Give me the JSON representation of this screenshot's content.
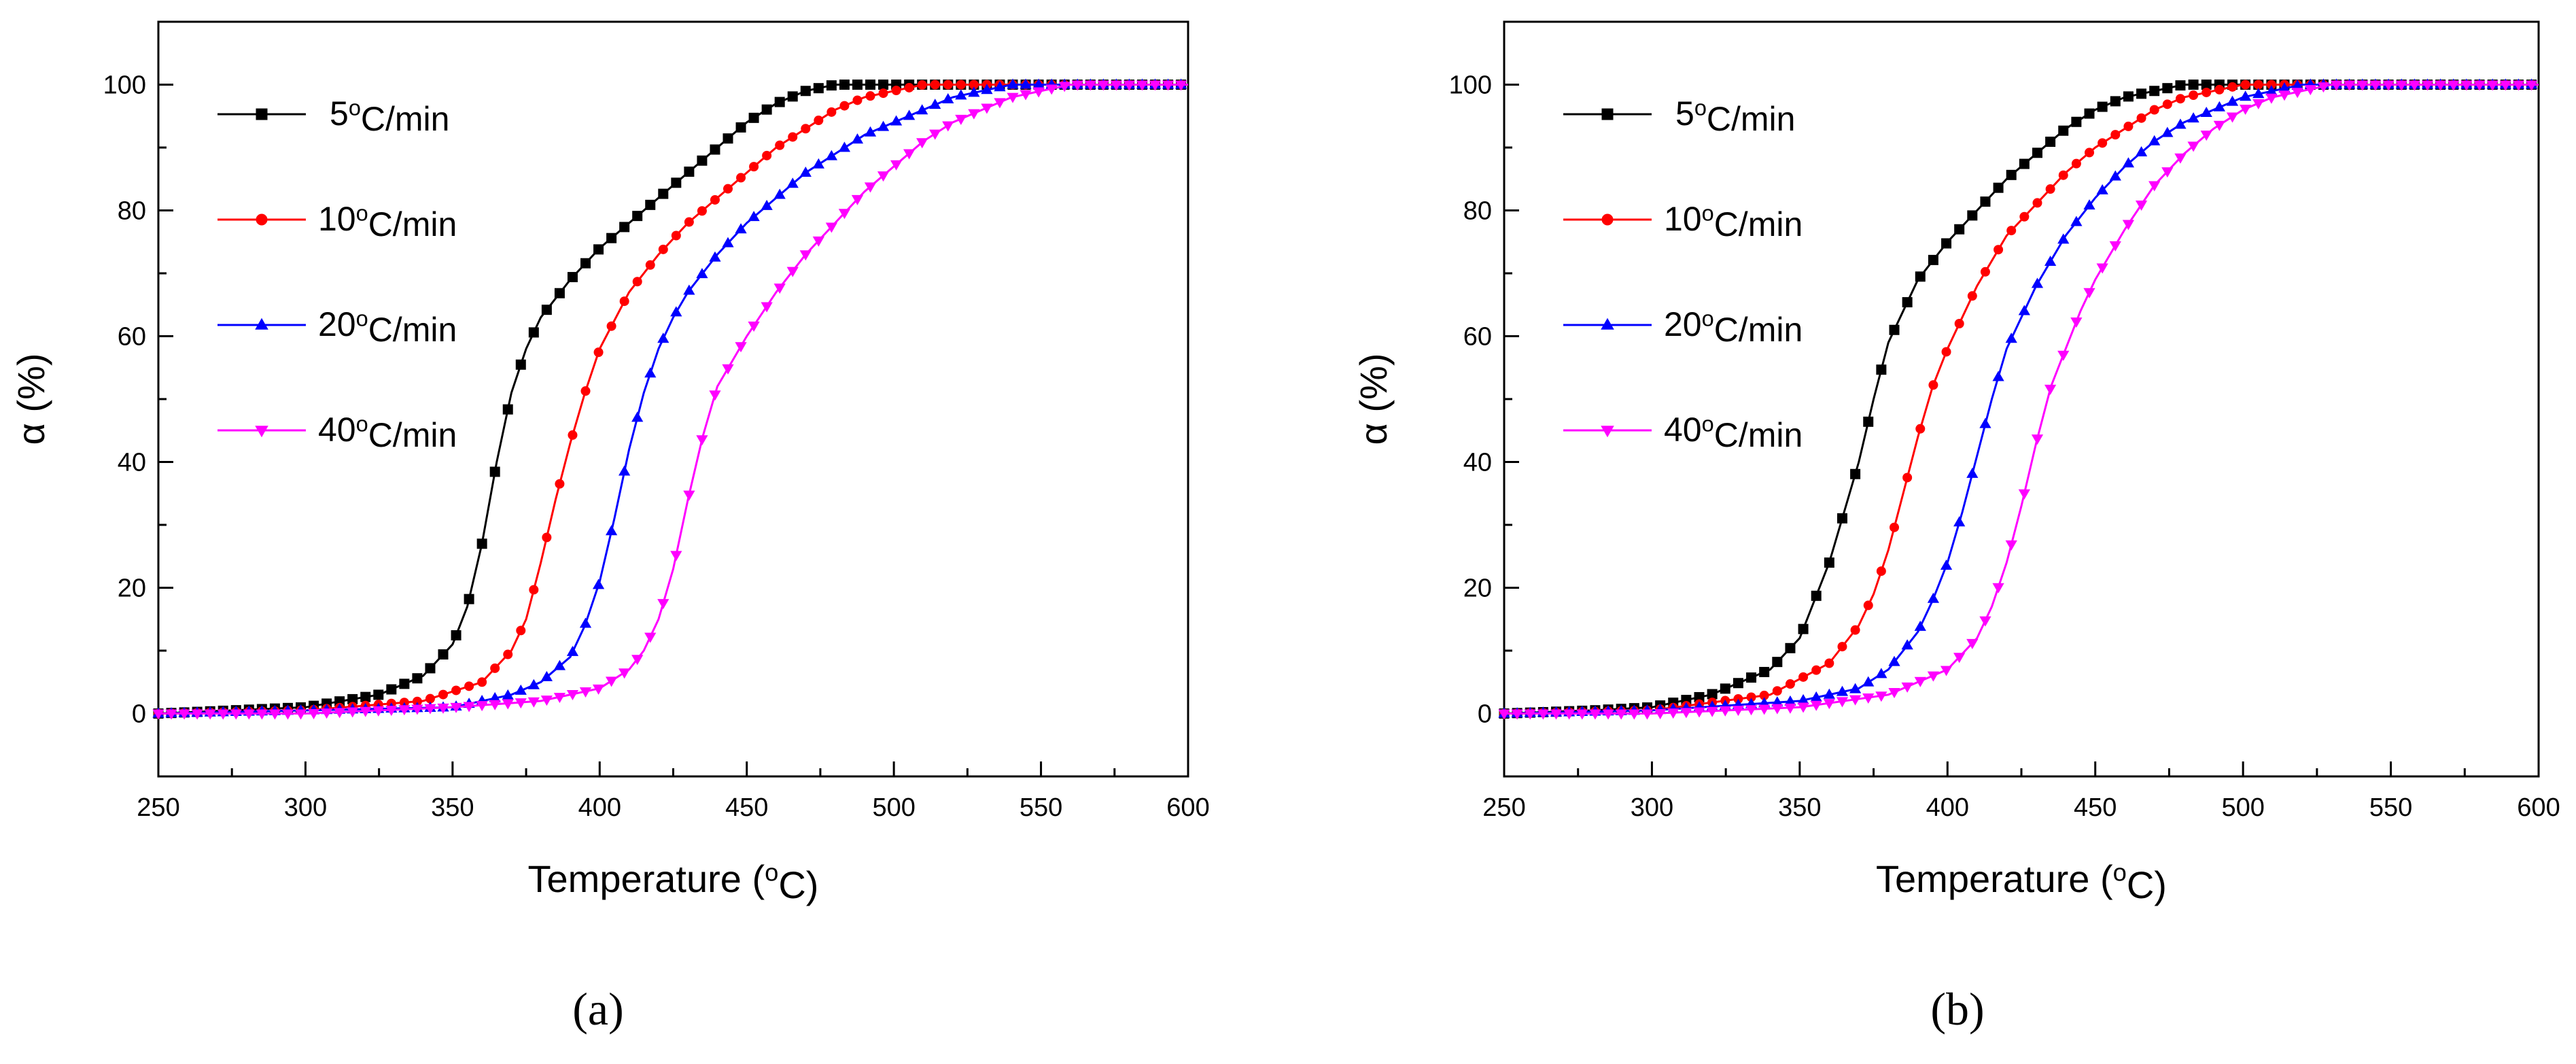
{
  "figure": {
    "captions": [
      "(a)",
      "(b)"
    ]
  },
  "chart_data": [
    {
      "type": "line",
      "panel": "(a)",
      "xlabel": "Temperature (oC)",
      "ylabel": "α (%)",
      "xlim": [
        250,
        600
      ],
      "ylim": [
        -10,
        110
      ],
      "xticks": [
        250,
        300,
        350,
        400,
        450,
        500,
        550,
        600
      ],
      "yticks": [
        0,
        20,
        40,
        60,
        80,
        100
      ],
      "grid": false,
      "legend_position": "top-left",
      "series": [
        {
          "name": "5oC/min",
          "label_value": "5",
          "color": "#000000",
          "marker": "square",
          "x": [
            250,
            300,
            325,
            340,
            350,
            355,
            360,
            365,
            370,
            375,
            380,
            390,
            400,
            410,
            420,
            430,
            440,
            450,
            460,
            470,
            480,
            490,
            500,
            550,
            600
          ],
          "y": [
            0,
            1,
            3,
            6,
            11,
            17,
            27,
            40,
            51,
            58,
            63,
            69,
            74,
            78,
            82,
            86,
            90,
            94,
            97,
            99,
            100,
            100,
            100,
            100,
            100
          ]
        },
        {
          "name": "10oC/min",
          "label_value": "10",
          "color": "#ff0000",
          "marker": "circle",
          "x": [
            250,
            300,
            340,
            360,
            370,
            375,
            380,
            385,
            390,
            395,
            400,
            410,
            420,
            430,
            440,
            450,
            460,
            470,
            480,
            490,
            500,
            510,
            520,
            550,
            600
          ],
          "y": [
            0,
            0.5,
            2,
            5,
            10,
            15,
            24,
            34,
            43,
            51,
            58,
            67,
            73,
            78,
            82,
            86,
            90,
            93,
            96,
            98,
            99,
            100,
            100,
            100,
            100
          ]
        },
        {
          "name": "20oC/min",
          "label_value": "20",
          "color": "#0000ff",
          "marker": "triangle-up",
          "x": [
            250,
            300,
            350,
            370,
            380,
            390,
            395,
            400,
            405,
            410,
            415,
            420,
            425,
            430,
            440,
            450,
            460,
            470,
            480,
            490,
            500,
            510,
            520,
            530,
            540,
            550,
            600
          ],
          "y": [
            0,
            0.5,
            1,
            3,
            5,
            9,
            14,
            21,
            31,
            42,
            51,
            58,
            63,
            67,
            73,
            78,
            82,
            86,
            89,
            92,
            94,
            96,
            98,
            99,
            100,
            100,
            100
          ]
        },
        {
          "name": "40oC/min",
          "label_value": "40",
          "color": "#ff00ff",
          "marker": "triangle-down",
          "x": [
            250,
            300,
            350,
            380,
            400,
            410,
            415,
            420,
            425,
            430,
            435,
            440,
            445,
            450,
            460,
            470,
            480,
            490,
            500,
            510,
            520,
            530,
            540,
            550,
            560,
            600
          ],
          "y": [
            0,
            0,
            1,
            2,
            4,
            7,
            10,
            15,
            23,
            34,
            44,
            52,
            56,
            60,
            67,
            73,
            78,
            83,
            87,
            91,
            94,
            96,
            98,
            99,
            100,
            100
          ]
        }
      ]
    },
    {
      "type": "line",
      "panel": "(b)",
      "xlabel": "Temperature (oC)",
      "ylabel": "α (%)",
      "xlim": [
        250,
        600
      ],
      "ylim": [
        -10,
        110
      ],
      "xticks": [
        250,
        300,
        350,
        400,
        450,
        500,
        550,
        600
      ],
      "yticks": [
        0,
        20,
        40,
        60,
        80,
        100
      ],
      "grid": false,
      "legend_position": "top-left",
      "series": [
        {
          "name": "5oC/min",
          "label_value": "5",
          "color": "#000000",
          "marker": "square",
          "x": [
            250,
            280,
            300,
            320,
            340,
            350,
            355,
            360,
            365,
            370,
            375,
            380,
            390,
            400,
            410,
            420,
            430,
            440,
            450,
            460,
            470,
            480,
            490,
            500,
            550,
            600
          ],
          "y": [
            0,
            0.5,
            1,
            3,
            7,
            12,
            18,
            24,
            32,
            40,
            50,
            59,
            69,
            75,
            80,
            85,
            89,
            93,
            96,
            98,
            99,
            100,
            100,
            100,
            100,
            100
          ]
        },
        {
          "name": "10oC/min",
          "label_value": "10",
          "color": "#ff0000",
          "marker": "circle",
          "x": [
            250,
            300,
            340,
            360,
            370,
            375,
            380,
            385,
            390,
            395,
            400,
            410,
            420,
            430,
            440,
            450,
            460,
            470,
            480,
            490,
            500,
            510,
            550,
            600
          ],
          "y": [
            0,
            0.5,
            3,
            8,
            14,
            19,
            26,
            35,
            44,
            52,
            58,
            68,
            76,
            81,
            86,
            90,
            93,
            96,
            98,
            99,
            100,
            100,
            100,
            100
          ]
        },
        {
          "name": "20oC/min",
          "label_value": "20",
          "color": "#0000ff",
          "marker": "triangle-up",
          "x": [
            250,
            300,
            350,
            370,
            380,
            390,
            395,
            400,
            405,
            410,
            415,
            420,
            430,
            440,
            450,
            460,
            470,
            480,
            490,
            500,
            510,
            520,
            530,
            550,
            600
          ],
          "y": [
            0,
            0.5,
            2,
            4,
            7,
            13,
            18,
            24,
            32,
            41,
            50,
            58,
            68,
            76,
            82,
            87,
            91,
            94,
            96,
            98,
            99,
            100,
            100,
            100,
            100
          ]
        },
        {
          "name": "40oC/min",
          "label_value": "40",
          "color": "#ff00ff",
          "marker": "triangle-down",
          "x": [
            250,
            300,
            350,
            380,
            400,
            410,
            415,
            420,
            425,
            430,
            435,
            440,
            445,
            450,
            460,
            470,
            480,
            490,
            500,
            510,
            520,
            530,
            540,
            550,
            600
          ],
          "y": [
            0,
            0,
            1,
            3,
            7,
            12,
            17,
            24,
            33,
            43,
            52,
            58,
            64,
            69,
            77,
            84,
            89,
            93,
            96,
            98,
            99,
            100,
            100,
            100,
            100
          ]
        }
      ]
    }
  ]
}
